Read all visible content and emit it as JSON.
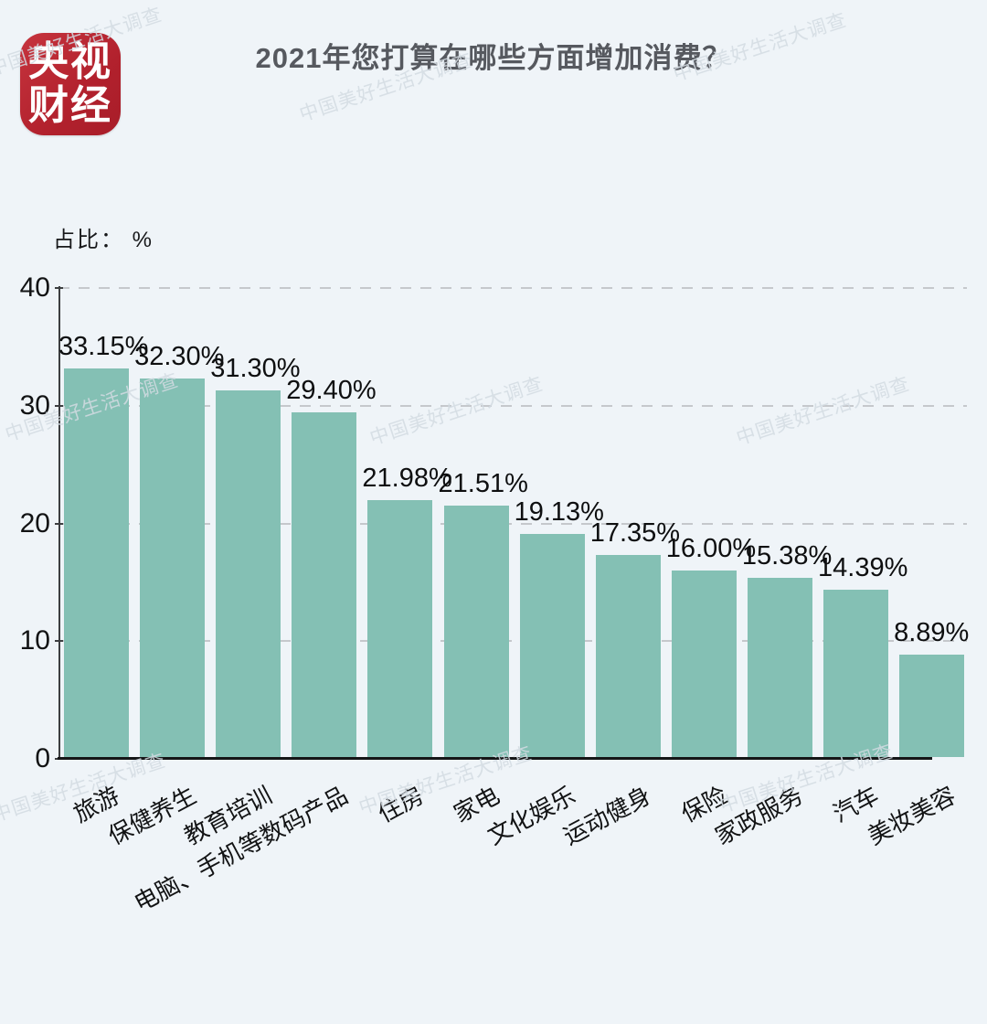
{
  "page": {
    "background": "#eff4f8"
  },
  "logo": {
    "line1": "央视",
    "line2": "财经",
    "bg_color": "#b2212d",
    "text_color": "#ffffff"
  },
  "title": "2021年您打算在哪些方面增加消费？",
  "watermark": {
    "text": "中国美好生活大调查"
  },
  "chart_data": {
    "type": "bar",
    "title": "2021年您打算在哪些方面增加消费？",
    "xlabel": "",
    "ylabel": "占比： %",
    "categories": [
      "旅游",
      "保健养生",
      "教育培训",
      "电脑、手机等数码产品",
      "住房",
      "家电",
      "文化娱乐",
      "运动健身",
      "保险",
      "家政服务",
      "汽车",
      "美妆美容"
    ],
    "values": [
      33.15,
      32.3,
      31.3,
      29.4,
      21.98,
      21.51,
      19.13,
      17.35,
      16.0,
      15.38,
      14.39,
      8.89
    ],
    "value_labels": [
      "33.15%",
      "32.30%",
      "31.30%",
      "29.40%",
      "21.98%",
      "21.51%",
      "19.13%",
      "17.35%",
      "16.00%",
      "15.38%",
      "14.39%",
      "8.89%"
    ],
    "yticks": [
      0,
      10,
      20,
      30,
      40
    ],
    "ylim": [
      0,
      40
    ],
    "bar_color": "#84c0b4",
    "grid": "horizontal-dashed",
    "legend": "none"
  }
}
